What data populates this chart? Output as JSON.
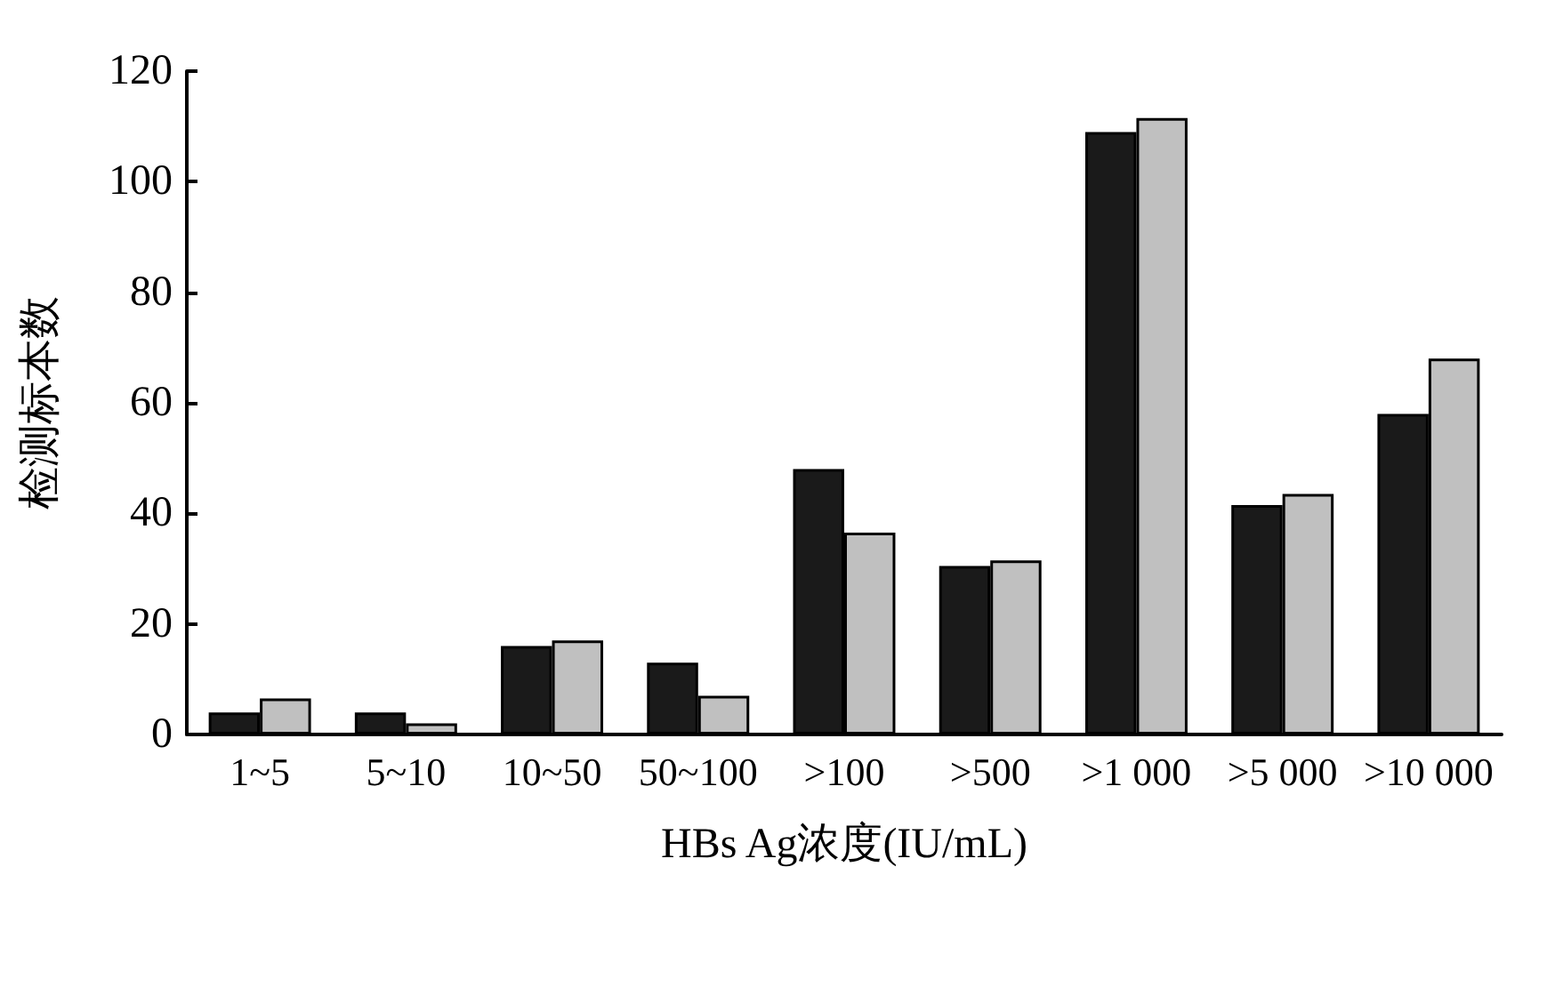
{
  "chart_data": {
    "type": "bar",
    "xlabel": "HBs Ag浓度(IU/mL)",
    "ylabel": "检测标本数",
    "categories": [
      "1~5",
      "5~10",
      "10~50",
      "50~100",
      ">100",
      ">500",
      ">1 000",
      ">5 000",
      ">10 000"
    ],
    "series": [
      {
        "color": "#1a1a1a",
        "values": [
          4,
          4,
          16,
          13,
          48,
          30.5,
          109,
          41.5,
          58
        ]
      },
      {
        "color": "#c0c0c0",
        "values": [
          6.5,
          2,
          17,
          7,
          36.5,
          31.5,
          111.5,
          43.5,
          68
        ]
      }
    ],
    "ylim": [
      0,
      120
    ],
    "yticks": [
      0,
      20,
      40,
      60,
      80,
      100,
      120
    ],
    "grid": false,
    "legend": false
  }
}
